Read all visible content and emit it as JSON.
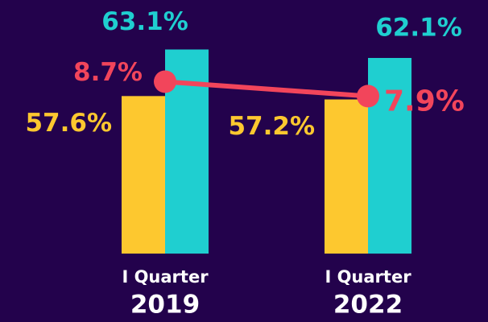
{
  "chart_data": {
    "type": "bar",
    "categories": [
      [
        "I Quarter",
        "2019"
      ],
      [
        "I Quarter",
        "2022"
      ]
    ],
    "series": [
      {
        "color": "#fdc82f",
        "values": [
          57.6,
          57.2
        ],
        "value_labels": [
          "57.6%",
          "57.2%"
        ]
      },
      {
        "color": "#1fcfd0",
        "values": [
          63.1,
          62.1
        ],
        "value_labels": [
          "63.1%",
          "62.1%"
        ]
      },
      {
        "type": "line",
        "axis": "y2",
        "color": "#f2455b",
        "values": [
          8.7,
          7.9
        ],
        "value_labels": [
          "8.7%",
          "7.9%"
        ]
      }
    ],
    "ylim": [
      39,
      64
    ],
    "y2lim": [
      -0.8,
      10.9
    ]
  }
}
